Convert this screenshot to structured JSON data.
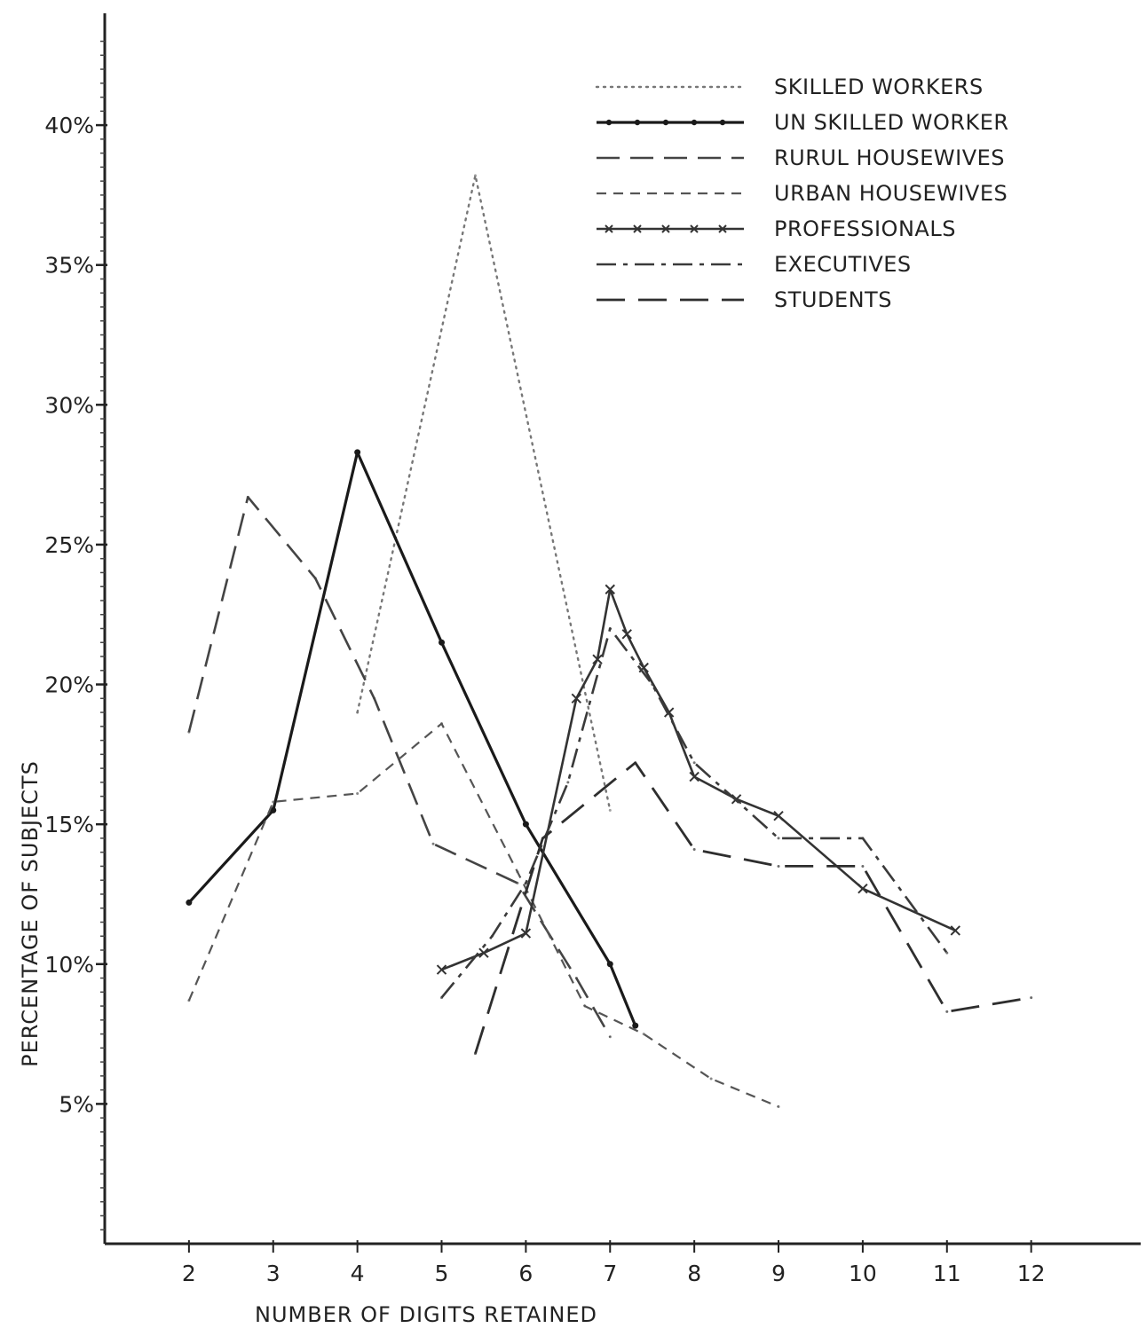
{
  "chart_data": {
    "type": "line",
    "title": "",
    "xlabel": "NUMBER OF DIGITS RETAINED",
    "ylabel": "PERCENTAGE OF SUBJECTS",
    "xlim": [
      1,
      13.3
    ],
    "ylim": [
      0,
      44
    ],
    "x_ticks": [
      2,
      3,
      4,
      5,
      6,
      7,
      8,
      9,
      10,
      11,
      12
    ],
    "x_tick_labels": [
      "2",
      "3",
      "4",
      "5",
      "6",
      "7",
      "8",
      "9",
      "10",
      "11",
      "12"
    ],
    "y_ticks": [
      5,
      10,
      15,
      20,
      25,
      30,
      35,
      40
    ],
    "y_tick_labels": [
      "5%",
      "10%",
      "15%",
      "20%",
      "25%",
      "30%",
      "35%",
      "40%"
    ],
    "grid": false,
    "legend_position": "top-right",
    "series": [
      {
        "name": "SKILLED WORKERS",
        "style": "dotted",
        "color": "#777777",
        "points": [
          [
            4,
            19
          ],
          [
            5.4,
            38.2
          ],
          [
            7,
            15.5
          ]
        ]
      },
      {
        "name": "UN SKILLED WORKER",
        "style": "dash-dot-solid",
        "color": "#1a1a1a",
        "points": [
          [
            2,
            12.2
          ],
          [
            3,
            15.5
          ],
          [
            4,
            28.3
          ],
          [
            5,
            21.5
          ],
          [
            6,
            15
          ],
          [
            7,
            10
          ],
          [
            7.3,
            7.8
          ]
        ]
      },
      {
        "name": "RURUL HOUSEWIVES",
        "style": "long-dash",
        "color": "#444444",
        "points": [
          [
            2,
            18.3
          ],
          [
            2.7,
            26.7
          ],
          [
            3.5,
            23.8
          ],
          [
            4.2,
            19.5
          ],
          [
            4.9,
            14.3
          ],
          [
            5.9,
            12.9
          ],
          [
            6.6,
            9.5
          ],
          [
            7,
            7.4
          ]
        ]
      },
      {
        "name": "URBAN HOUSEWIVES",
        "style": "short-dash",
        "color": "#555555",
        "points": [
          [
            2,
            8.7
          ],
          [
            3,
            15.8
          ],
          [
            4,
            16.1
          ],
          [
            5,
            18.6
          ],
          [
            5.9,
            13.3
          ],
          [
            6.7,
            8.5
          ],
          [
            7.4,
            7.5
          ],
          [
            8.2,
            5.9
          ],
          [
            9,
            4.9
          ]
        ]
      },
      {
        "name": "PROFESSIONALS",
        "style": "cross-marker",
        "color": "#333333",
        "points": [
          [
            5,
            9.8
          ],
          [
            5.5,
            10.4
          ],
          [
            6,
            11.1
          ],
          [
            6.6,
            19.5
          ],
          [
            6.85,
            20.9
          ],
          [
            7,
            23.4
          ],
          [
            7.2,
            21.8
          ],
          [
            7.4,
            20.6
          ],
          [
            7.7,
            19
          ],
          [
            8,
            16.7
          ],
          [
            8.5,
            15.9
          ],
          [
            9,
            15.3
          ],
          [
            10,
            12.7
          ],
          [
            11.1,
            11.2
          ]
        ]
      },
      {
        "name": "EXECUTIVES",
        "style": "dash-dot",
        "color": "#3a3a3a",
        "points": [
          [
            5,
            8.8
          ],
          [
            5.6,
            11
          ],
          [
            6,
            12.9
          ],
          [
            6.5,
            16.5
          ],
          [
            7,
            22
          ],
          [
            7.5,
            20
          ],
          [
            8,
            17.2
          ],
          [
            9,
            14.5
          ],
          [
            10,
            14.5
          ],
          [
            11,
            10.4
          ]
        ]
      },
      {
        "name": "STUDENTS",
        "style": "long-dash-wide",
        "color": "#2e2e2e",
        "points": [
          [
            5.4,
            6.8
          ],
          [
            6.2,
            14.5
          ],
          [
            7.3,
            17.2
          ],
          [
            8,
            14.1
          ],
          [
            9,
            13.5
          ],
          [
            10,
            13.5
          ],
          [
            11,
            8.3
          ],
          [
            12,
            8.8
          ]
        ]
      }
    ]
  }
}
